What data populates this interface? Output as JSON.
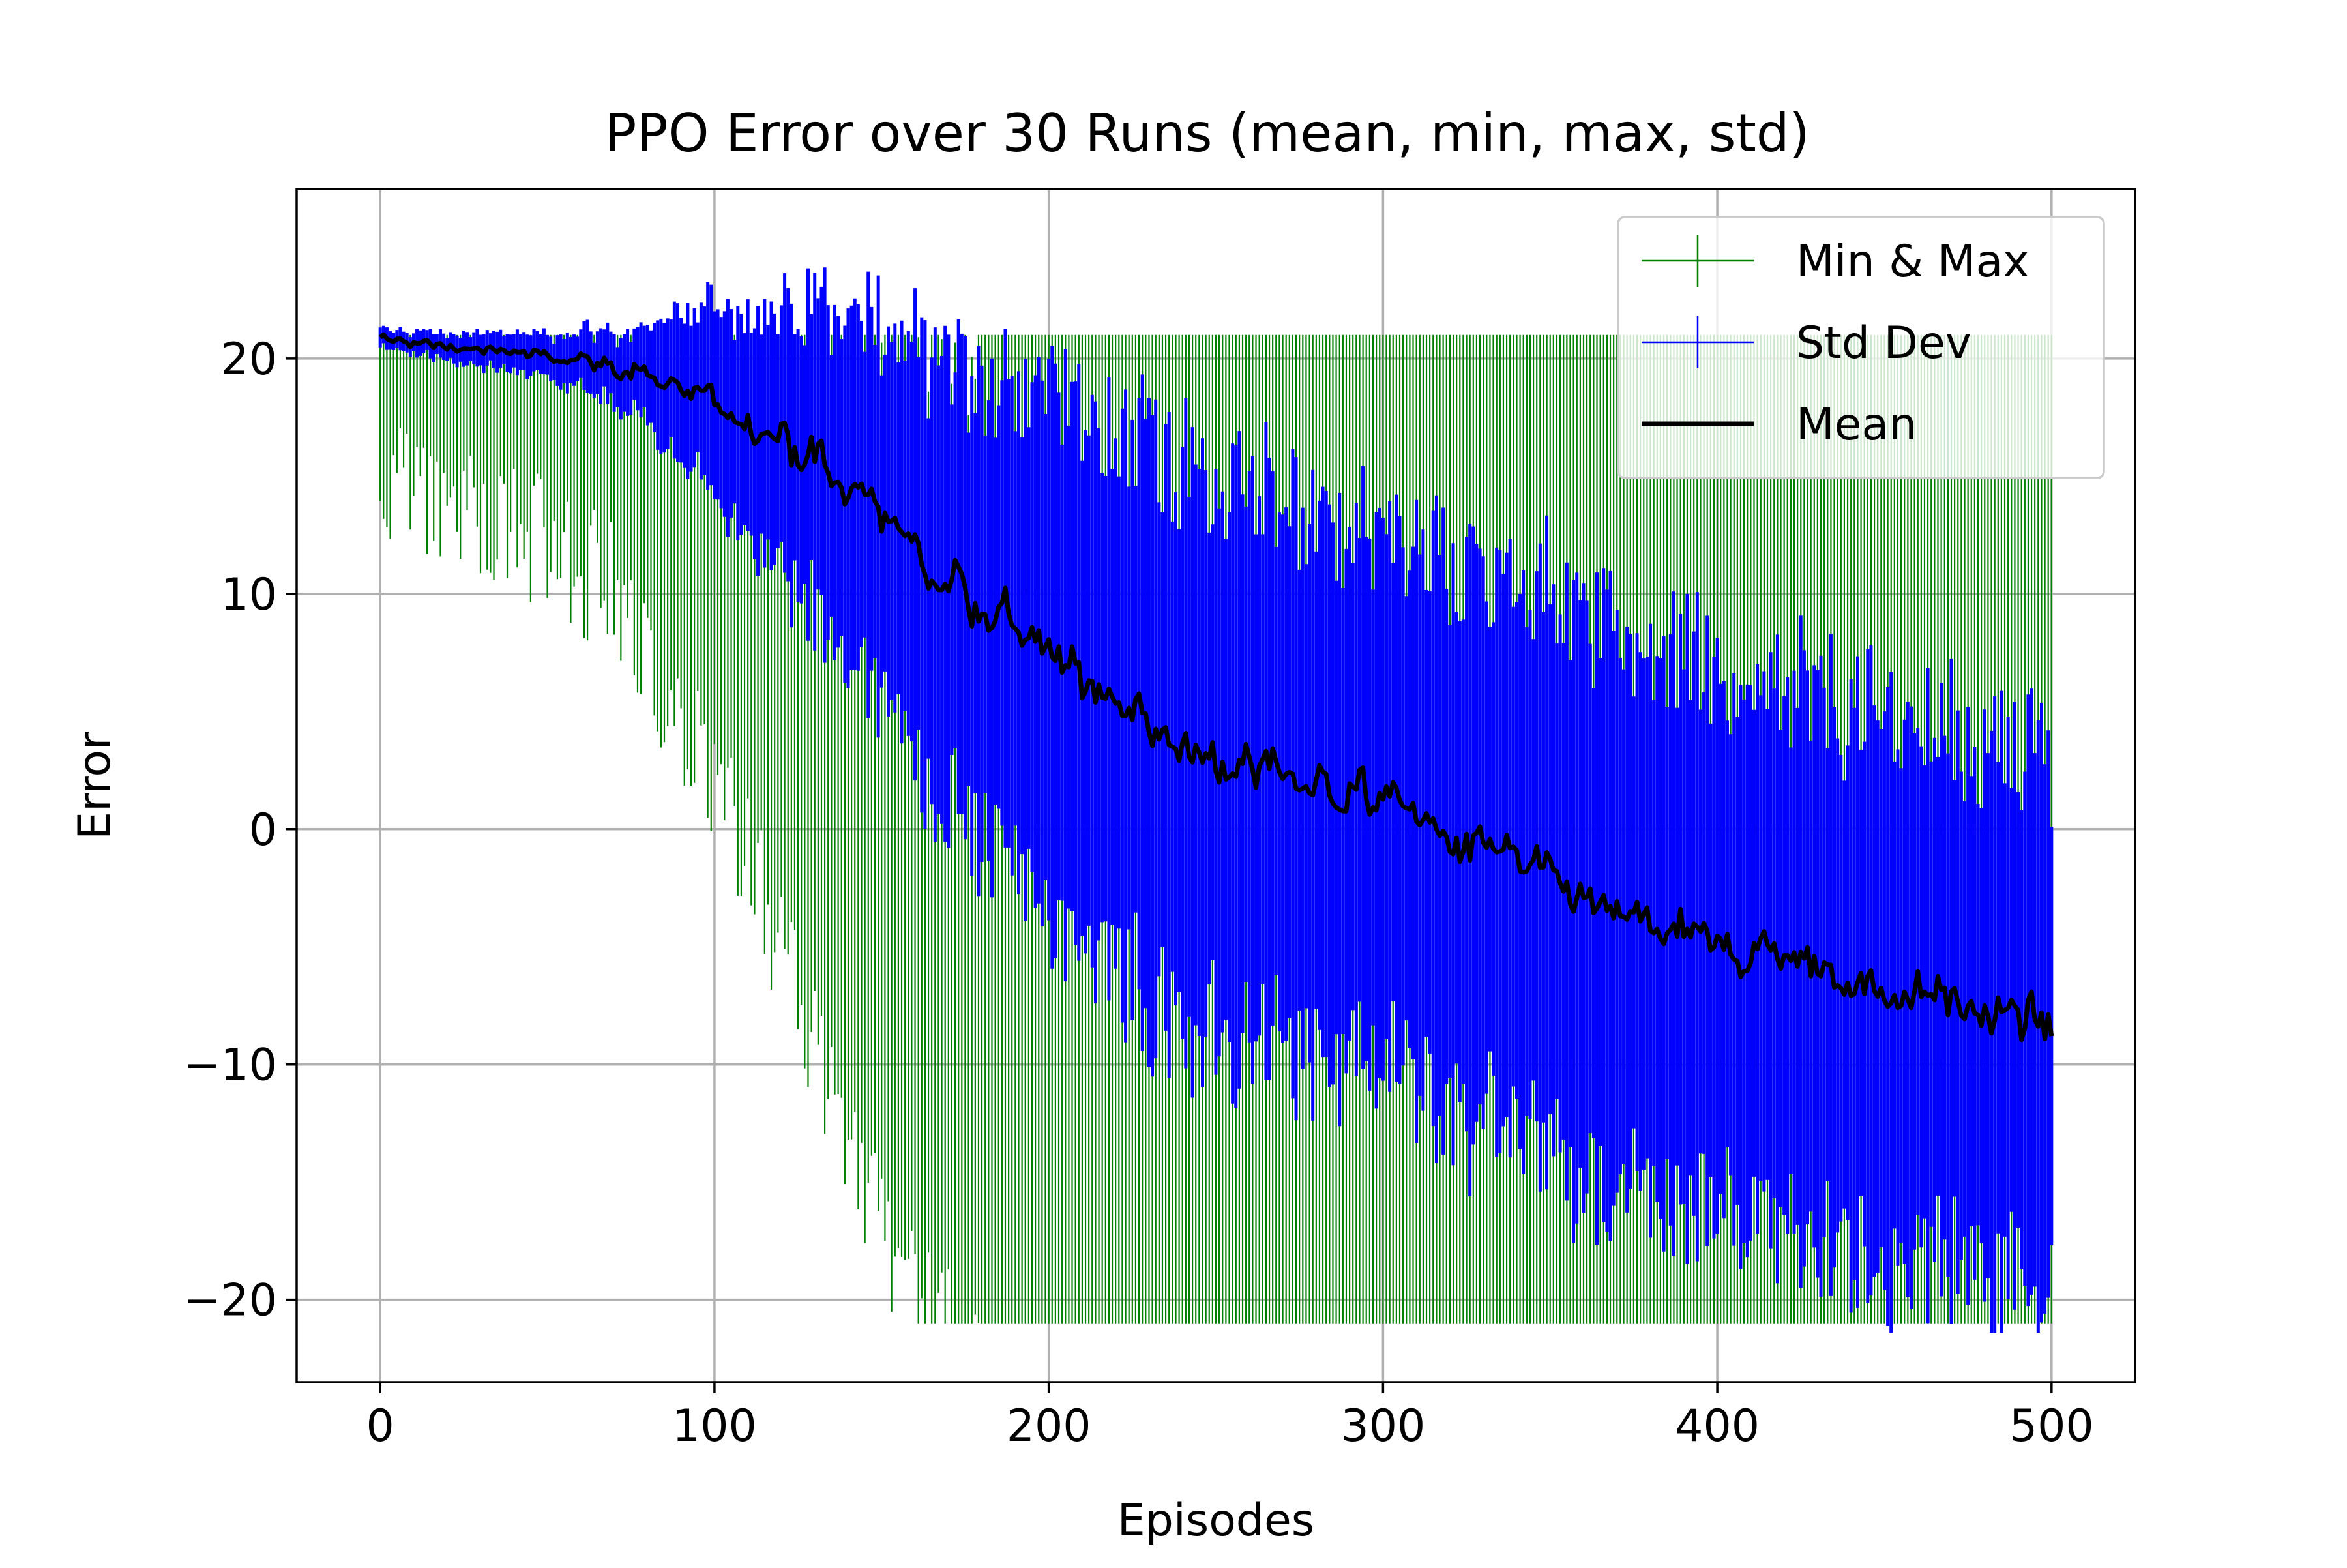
{
  "chart_data": {
    "type": "line",
    "title": "PPO Error over 30 Runs (mean, min, max, std)",
    "xlabel": "Episodes",
    "ylabel": "Error",
    "xlim": [
      -25,
      525
    ],
    "ylim": [
      -23.5,
      27.2
    ],
    "xticks": [
      0,
      100,
      200,
      300,
      400,
      500
    ],
    "yticks": [
      -20,
      -10,
      0,
      10,
      20
    ],
    "xtick_labels": [
      "0",
      "100",
      "200",
      "300",
      "400",
      "500"
    ],
    "ytick_labels": [
      "−20",
      "−10",
      "0",
      "10",
      "20"
    ],
    "grid": true,
    "legend_position": "top-right",
    "series": [
      {
        "name": "Min & Max",
        "color": "#008000",
        "style": "vertical-range"
      },
      {
        "name": "Std Dev",
        "color": "#0000ff",
        "style": "vertical-range"
      },
      {
        "name": "Mean",
        "color": "#000000",
        "style": "line"
      }
    ],
    "mean_keypoints": {
      "x": [
        0,
        20,
        40,
        60,
        80,
        100,
        120,
        140,
        160,
        180,
        200,
        220,
        240,
        260,
        280,
        300,
        320,
        340,
        360,
        380,
        400,
        420,
        440,
        460,
        480,
        500
      ],
      "y": [
        20.8,
        20.5,
        20.3,
        20.0,
        19.2,
        18.2,
        16.5,
        14.5,
        12.2,
        9.5,
        7.5,
        5.5,
        3.5,
        2.5,
        1.8,
        1.0,
        -0.5,
        -1.5,
        -3.0,
        -4.0,
        -5.0,
        -5.5,
        -6.3,
        -7.0,
        -7.8,
        -8.2
      ]
    },
    "max_keypoints": {
      "x": [
        0,
        60,
        100,
        150,
        175,
        180,
        260,
        300,
        350,
        400,
        450,
        500
      ],
      "y": [
        21,
        21,
        21,
        21,
        21,
        21,
        21,
        21,
        21,
        21,
        21,
        21
      ]
    },
    "min_keypoints": {
      "x": [
        0,
        40,
        70,
        100,
        120,
        150,
        180,
        200,
        250,
        300,
        400,
        500
      ],
      "y": [
        18,
        16,
        13,
        5,
        -2,
        -14,
        -21,
        -21,
        -21,
        -21,
        -21,
        -21
      ]
    },
    "std_keypoints": {
      "x": [
        0,
        20,
        50,
        80,
        100,
        120,
        150,
        180,
        200,
        220,
        250,
        300,
        350,
        400,
        450,
        500
      ],
      "y": [
        0.4,
        0.6,
        0.9,
        2.0,
        4.0,
        6.0,
        8.5,
        10.0,
        11.0,
        12.0,
        12.0,
        12.0,
        12.0,
        12.0,
        12.0,
        11.5
      ]
    },
    "n_episodes": 501
  }
}
